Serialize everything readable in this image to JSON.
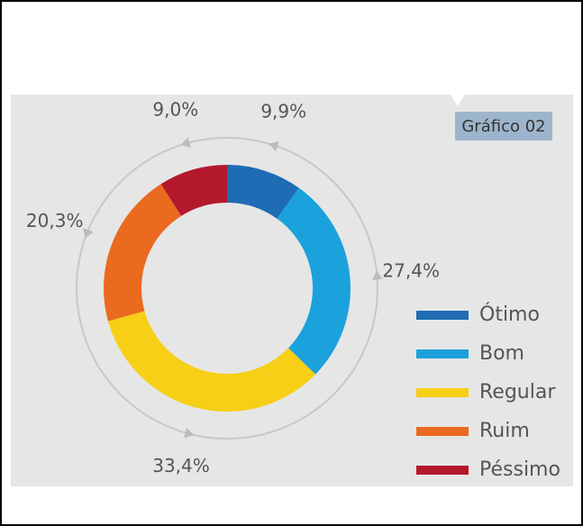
{
  "chart_data": {
    "type": "pie",
    "title": "Gráfico 02",
    "categories": [
      "Ótimo",
      "Bom",
      "Regular",
      "Ruim",
      "Péssimo"
    ],
    "values": [
      9.9,
      27.4,
      33.4,
      20.3,
      9.0
    ],
    "value_labels": [
      "9,9%",
      "27,4%",
      "33,4%",
      "20,3%",
      "9,0%"
    ],
    "colors": [
      "#1f6cb4",
      "#1ba2dc",
      "#f6cf16",
      "#ea6a1f",
      "#b3182b"
    ],
    "legend": "lower right"
  }
}
